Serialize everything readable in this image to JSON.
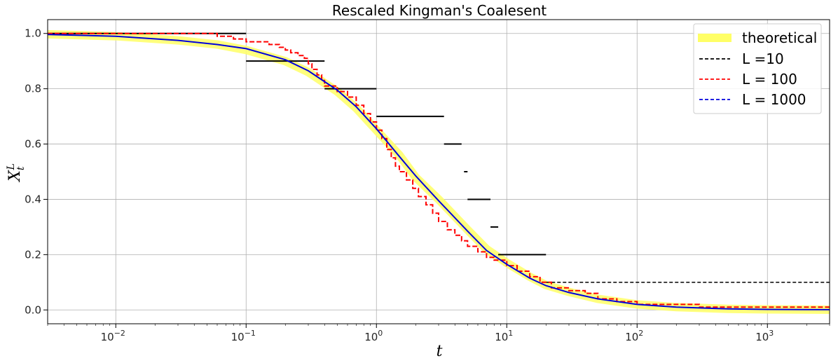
{
  "chart_data": {
    "type": "line",
    "title": "Rescaled Kingman's Coalesent",
    "xlabel": "t",
    "ylabel": "X_t^L",
    "xscale": "log",
    "xlim": [
      0.003,
      3000
    ],
    "ylim": [
      -0.05,
      1.05
    ],
    "grid": true,
    "legend_position": "top-right",
    "x_tick_labels": [
      {
        "value": 0.01,
        "base": "10",
        "exp": "−2"
      },
      {
        "value": 0.1,
        "base": "10",
        "exp": "−1"
      },
      {
        "value": 1,
        "base": "10",
        "exp": "0"
      },
      {
        "value": 10,
        "base": "10",
        "exp": "1"
      },
      {
        "value": 100,
        "base": "10",
        "exp": "2"
      },
      {
        "value": 1000,
        "base": "10",
        "exp": "3"
      }
    ],
    "y_ticks": [
      0.0,
      0.2,
      0.4,
      0.6,
      0.8,
      1.0
    ],
    "y_tick_labels": [
      "0.0",
      "0.2",
      "0.4",
      "0.6",
      "0.8",
      "1.0"
    ],
    "series": [
      {
        "name": "theoretical",
        "color": "#ffff66",
        "style": "thick-band",
        "points": [
          [
            0.003,
            0.997
          ],
          [
            0.01,
            0.99
          ],
          [
            0.03,
            0.975
          ],
          [
            0.06,
            0.96
          ],
          [
            0.1,
            0.94
          ],
          [
            0.2,
            0.9
          ],
          [
            0.3,
            0.86
          ],
          [
            0.5,
            0.79
          ],
          [
            0.7,
            0.73
          ],
          [
            1,
            0.65
          ],
          [
            1.5,
            0.56
          ],
          [
            2,
            0.48
          ],
          [
            3,
            0.4
          ],
          [
            5,
            0.29
          ],
          [
            7,
            0.22
          ],
          [
            10,
            0.17
          ],
          [
            15,
            0.12
          ],
          [
            20,
            0.09
          ],
          [
            30,
            0.065
          ],
          [
            50,
            0.04
          ],
          [
            100,
            0.02
          ],
          [
            200,
            0.01
          ],
          [
            500,
            0.004
          ],
          [
            1000,
            0.002
          ],
          [
            3000,
            0.0007
          ]
        ]
      },
      {
        "name": "L =10",
        "color": "#000000",
        "style": "dashed",
        "steps": [
          [
            0.003,
            0.1,
            1.0
          ],
          [
            0.1,
            0.4,
            0.9
          ],
          [
            0.4,
            1.0,
            0.8
          ],
          [
            1.0,
            3.3,
            0.7
          ],
          [
            3.3,
            4.5,
            0.6
          ],
          [
            4.7,
            5.0,
            0.5
          ],
          [
            5.0,
            7.5,
            0.4
          ],
          [
            7.5,
            8.6,
            0.3
          ],
          [
            8.6,
            20,
            0.2
          ],
          [
            20,
            3000,
            0.1
          ]
        ]
      },
      {
        "name": "L = 100",
        "color": "#ff0000",
        "style": "dashed",
        "points": [
          [
            0.003,
            1.0
          ],
          [
            0.06,
            1.0
          ],
          [
            0.06,
            0.99
          ],
          [
            0.08,
            0.98
          ],
          [
            0.1,
            0.97
          ],
          [
            0.15,
            0.96
          ],
          [
            0.18,
            0.95
          ],
          [
            0.2,
            0.94
          ],
          [
            0.22,
            0.93
          ],
          [
            0.25,
            0.92
          ],
          [
            0.28,
            0.91
          ],
          [
            0.3,
            0.89
          ],
          [
            0.32,
            0.87
          ],
          [
            0.35,
            0.85
          ],
          [
            0.38,
            0.83
          ],
          [
            0.4,
            0.81
          ],
          [
            0.5,
            0.79
          ],
          [
            0.6,
            0.77
          ],
          [
            0.7,
            0.74
          ],
          [
            0.8,
            0.71
          ],
          [
            0.9,
            0.68
          ],
          [
            1.0,
            0.65
          ],
          [
            1.1,
            0.62
          ],
          [
            1.2,
            0.58
          ],
          [
            1.3,
            0.55
          ],
          [
            1.4,
            0.52
          ],
          [
            1.5,
            0.5
          ],
          [
            1.7,
            0.47
          ],
          [
            1.9,
            0.44
          ],
          [
            2.1,
            0.41
          ],
          [
            2.4,
            0.38
          ],
          [
            2.7,
            0.35
          ],
          [
            3.0,
            0.32
          ],
          [
            3.5,
            0.29
          ],
          [
            4.0,
            0.27
          ],
          [
            4.5,
            0.25
          ],
          [
            5.0,
            0.23
          ],
          [
            6.0,
            0.21
          ],
          [
            7.0,
            0.19
          ],
          [
            8.0,
            0.18
          ],
          [
            10,
            0.16
          ],
          [
            12,
            0.14
          ],
          [
            15,
            0.12
          ],
          [
            18,
            0.1
          ],
          [
            22,
            0.08
          ],
          [
            30,
            0.07
          ],
          [
            40,
            0.06
          ],
          [
            50,
            0.04
          ],
          [
            70,
            0.03
          ],
          [
            100,
            0.02
          ],
          [
            300,
            0.02
          ],
          [
            300,
            0.01
          ],
          [
            3000,
            0.01
          ]
        ]
      },
      {
        "name": "L = 1000",
        "color": "#0000dd",
        "style": "dashed",
        "points": [
          [
            0.003,
            0.996
          ],
          [
            0.01,
            0.99
          ],
          [
            0.03,
            0.975
          ],
          [
            0.06,
            0.96
          ],
          [
            0.1,
            0.945
          ],
          [
            0.2,
            0.905
          ],
          [
            0.3,
            0.865
          ],
          [
            0.5,
            0.795
          ],
          [
            0.7,
            0.735
          ],
          [
            1,
            0.655
          ],
          [
            1.5,
            0.555
          ],
          [
            2,
            0.485
          ],
          [
            3,
            0.395
          ],
          [
            5,
            0.285
          ],
          [
            7,
            0.215
          ],
          [
            10,
            0.165
          ],
          [
            15,
            0.115
          ],
          [
            20,
            0.088
          ],
          [
            30,
            0.063
          ],
          [
            50,
            0.04
          ],
          [
            100,
            0.02
          ],
          [
            200,
            0.01
          ],
          [
            500,
            0.004
          ],
          [
            1000,
            0.002
          ],
          [
            3000,
            0.001
          ]
        ]
      }
    ]
  }
}
